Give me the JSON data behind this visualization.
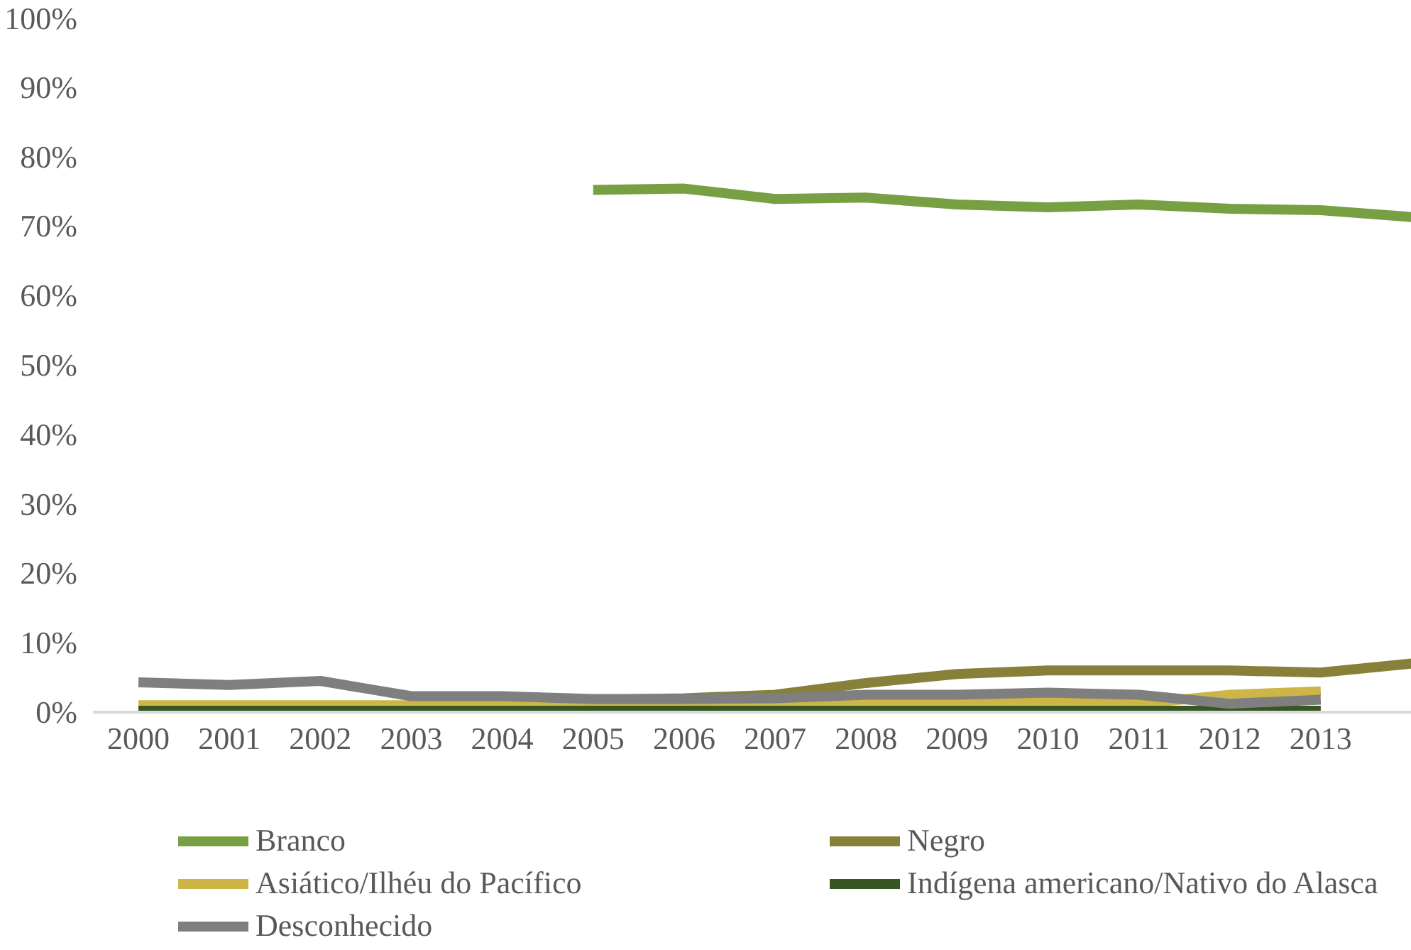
{
  "chart_data": {
    "type": "line",
    "x": [
      2000,
      2001,
      2002,
      2003,
      2004,
      2005,
      2006,
      2007,
      2008,
      2009,
      2010,
      2011,
      2012,
      2013,
      2014
    ],
    "xlim": [
      1999.5,
      2014
    ],
    "xticks": [
      2000,
      2001,
      2002,
      2003,
      2004,
      2005,
      2006,
      2007,
      2008,
      2009,
      2010,
      2011,
      2012,
      2013
    ],
    "ylim": [
      0,
      100
    ],
    "yticks": [
      {
        "value": 0,
        "label": "0%"
      },
      {
        "value": 10,
        "label": "10%"
      },
      {
        "value": 20,
        "label": "20%"
      },
      {
        "value": 30,
        "label": "30%"
      },
      {
        "value": 40,
        "label": "40%"
      },
      {
        "value": 50,
        "label": "50%"
      },
      {
        "value": 60,
        "label": "60%"
      },
      {
        "value": 70,
        "label": "70%"
      },
      {
        "value": 80,
        "label": "80%"
      },
      {
        "value": 90,
        "label": "90%"
      },
      {
        "value": 100,
        "label": "100%"
      }
    ],
    "grid": false,
    "legend": "bottom",
    "marker": "none",
    "line_style": "solid",
    "series": [
      {
        "name": "Branco",
        "color": "#77a043",
        "values": [
          null,
          null,
          null,
          null,
          null,
          75.2,
          75.4,
          73.9,
          74.1,
          73.1,
          72.7,
          73.1,
          72.5,
          72.3,
          71.3
        ]
      },
      {
        "name": "Negro",
        "color": "#878038",
        "values": [
          null,
          null,
          null,
          null,
          null,
          1.8,
          2.0,
          2.5,
          4.2,
          5.5,
          6.0,
          6.0,
          6.0,
          5.7,
          7.0
        ]
      },
      {
        "name": "Asiático/Ilhéu do Pacífico",
        "color": "#cdb548",
        "values": [
          1.0,
          1.0,
          1.0,
          1.0,
          1.0,
          1.0,
          1.0,
          1.0,
          1.2,
          1.2,
          1.5,
          1.2,
          2.5,
          3.0,
          null
        ]
      },
      {
        "name": "Indígena americano/Nativo do Alasca",
        "color": "#375623",
        "values": [
          0.2,
          0.2,
          0.2,
          0.2,
          0.2,
          0.2,
          0.2,
          0.2,
          0.2,
          0.2,
          0.2,
          0.2,
          0.2,
          0.2,
          null
        ]
      },
      {
        "name": "Desconhecido",
        "color": "#7f7f7f",
        "values": [
          4.3,
          3.9,
          4.5,
          2.3,
          2.3,
          1.9,
          1.9,
          2.0,
          2.5,
          2.5,
          2.8,
          2.5,
          1.2,
          1.8,
          null
        ]
      }
    ]
  }
}
